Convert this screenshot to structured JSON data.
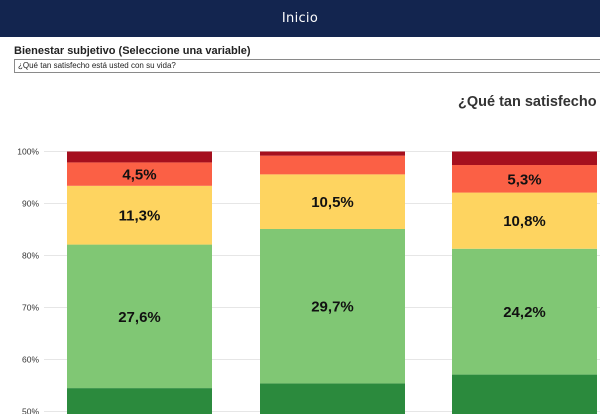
{
  "header": {
    "title": "Inicio"
  },
  "selector": {
    "label": "Bienestar subjetivo (Seleccione una variable)",
    "value": "¿Qué tan satisfecho está usted con su vida?"
  },
  "chart_data": {
    "type": "bar",
    "stacked": true,
    "title": "¿Qué tan satisfecho e",
    "y_ticks": [
      "50%",
      "60%",
      "70%",
      "80%",
      "90%",
      "100%"
    ],
    "ylim": [
      50,
      100
    ],
    "grid": true,
    "colors": {
      "dark_red": "#a50f1e",
      "red": "#fb6045",
      "yellow": "#fed460",
      "light_green": "#80c774",
      "dark_green": "#2b8a3d"
    },
    "bars": [
      {
        "segments": [
          {
            "color": "dark_green",
            "from": 50,
            "to": 54.5,
            "label": ""
          },
          {
            "color": "light_green",
            "from": 54.5,
            "to": 82.1,
            "label": "27,6%"
          },
          {
            "color": "yellow",
            "from": 82.1,
            "to": 93.4,
            "label": "11,3%"
          },
          {
            "color": "red",
            "from": 93.4,
            "to": 97.9,
            "label": "4,5%"
          },
          {
            "color": "dark_red",
            "from": 97.9,
            "to": 100,
            "label": ""
          }
        ]
      },
      {
        "segments": [
          {
            "color": "dark_green",
            "from": 50,
            "to": 55.4,
            "label": ""
          },
          {
            "color": "light_green",
            "from": 55.4,
            "to": 85.1,
            "label": "29,7%"
          },
          {
            "color": "yellow",
            "from": 85.1,
            "to": 95.6,
            "label": "10,5%"
          },
          {
            "color": "red",
            "from": 95.6,
            "to": 99.2,
            "label": ""
          },
          {
            "color": "dark_red",
            "from": 99.2,
            "to": 100,
            "label": ""
          }
        ]
      },
      {
        "segments": [
          {
            "color": "dark_green",
            "from": 50,
            "to": 57.1,
            "label": ""
          },
          {
            "color": "light_green",
            "from": 57.1,
            "to": 81.3,
            "label": "24,2%"
          },
          {
            "color": "yellow",
            "from": 81.3,
            "to": 92.1,
            "label": "10,8%"
          },
          {
            "color": "red",
            "from": 92.1,
            "to": 97.4,
            "label": "5,3%"
          },
          {
            "color": "dark_red",
            "from": 97.4,
            "to": 100,
            "label": ""
          }
        ]
      }
    ]
  }
}
